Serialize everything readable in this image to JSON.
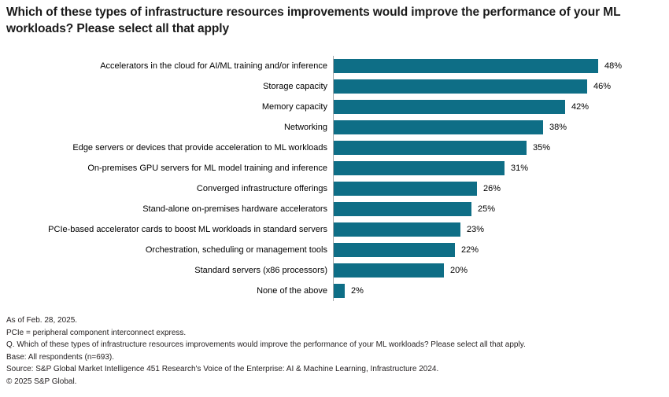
{
  "title": "Which of these types of infrastructure resources improvements would improve the performance of your ML workloads? Please select all that apply",
  "chart_data": {
    "type": "bar",
    "orientation": "horizontal",
    "title": "Which of these types of infrastructure resources improvements would improve the performance of your ML workloads? Please select all that apply",
    "xlabel": "",
    "ylabel": "",
    "unit": "%",
    "xlim": [
      0,
      52
    ],
    "grid": false,
    "legend": "none",
    "bar_color": "#0e6e86",
    "axis_color": "#a6a9ac",
    "categories": [
      "Accelerators in the cloud for AI/ML training and/or inference",
      "Storage capacity",
      "Memory capacity",
      "Networking",
      "Edge servers or devices that provide acceleration to ML workloads",
      "On-premises GPU servers for ML model training and inference",
      "Converged infrastructure offerings",
      "Stand-alone on-premises hardware accelerators",
      "PCIe-based accelerator cards to boost ML workloads in standard servers",
      "Orchestration, scheduling or management tools",
      "Standard servers (x86 processors)",
      "None of the above"
    ],
    "values": [
      48,
      46,
      42,
      38,
      35,
      31,
      26,
      25,
      23,
      22,
      20,
      2
    ],
    "data_labels": [
      "48%",
      "46%",
      "42%",
      "38%",
      "35%",
      "31%",
      "26%",
      "25%",
      "23%",
      "22%",
      "20%",
      "2%"
    ]
  },
  "footnotes": {
    "as_of": "As of Feb. 28, 2025.",
    "definition": "PCIe = peripheral component interconnect express.",
    "question": "Q. Which of these types of infrastructure resources improvements would improve the performance of your ML workloads? Please select all that apply.",
    "base": "Base: All respondents (n=693).",
    "source": "Source: S&P Global Market Intelligence 451 Research's Voice of the Enterprise: AI & Machine Learning, Infrastructure 2024.",
    "copyright": "© 2025 S&P Global."
  }
}
